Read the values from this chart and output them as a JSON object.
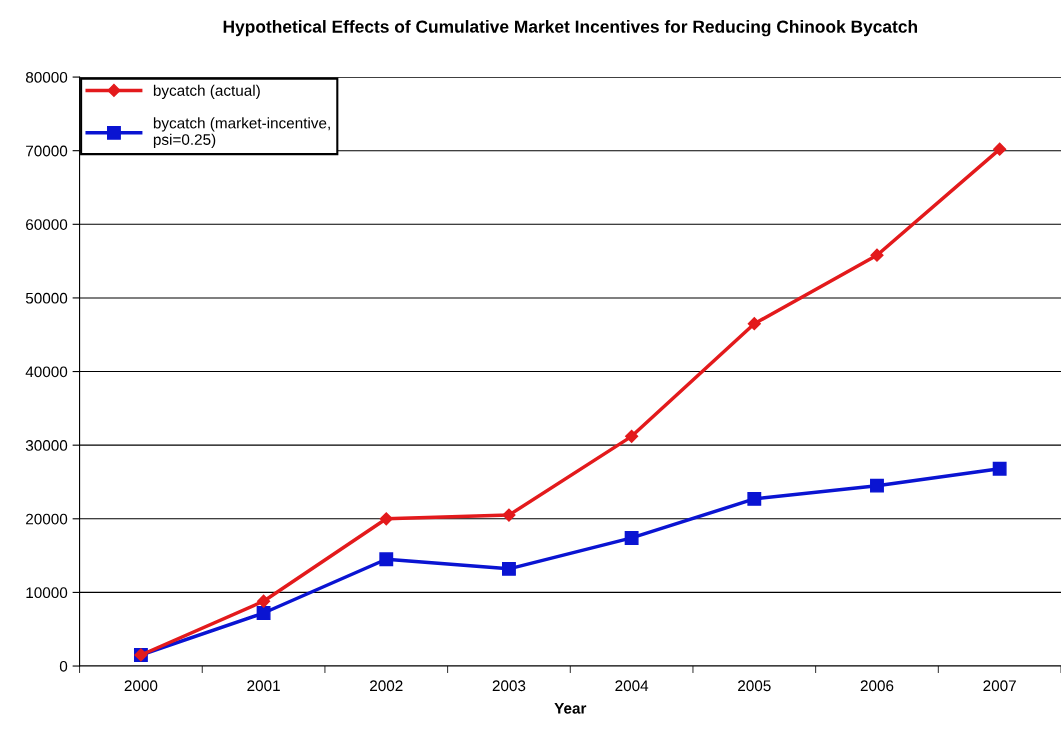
{
  "chart_data": {
    "type": "line",
    "title": "Hypothetical Effects of Cumulative Market Incentives for Reducing Chinook Bycatch",
    "xlabel": "Year",
    "categories": [
      "2000",
      "2001",
      "2002",
      "2003",
      "2004",
      "2005",
      "2006",
      "2007"
    ],
    "series": [
      {
        "name": "bycatch (actual)",
        "color": "#e31a1c",
        "marker": "diamond",
        "values": [
          1500,
          8800,
          20000,
          20500,
          31200,
          46500,
          55800,
          70200
        ]
      },
      {
        "name": "bycatch (market-incentive,\npsi=0.25)",
        "color": "#0a14d2",
        "marker": "square",
        "values": [
          1500,
          7200,
          14500,
          13200,
          17400,
          22700,
          24500,
          26800
        ]
      }
    ],
    "ylim": [
      0,
      80000
    ],
    "yticks": [
      0,
      10000,
      20000,
      30000,
      40000,
      50000,
      60000,
      70000,
      80000
    ],
    "grid": "y",
    "legend": "top left",
    "line_style": "solid"
  }
}
